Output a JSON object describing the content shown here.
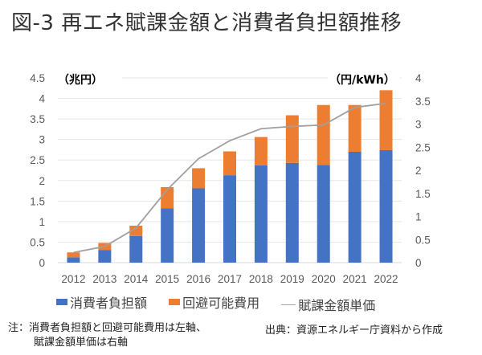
{
  "title": "図-3 再エネ賦課金額と消費者負担額推移",
  "chart_data": {
    "type": "bar",
    "stacked": true,
    "title": "図-3 再エネ賦課金額と消費者負担額推移",
    "categories": [
      "2012",
      "2013",
      "2014",
      "2015",
      "2016",
      "2017",
      "2018",
      "2019",
      "2020",
      "2021",
      "2022"
    ],
    "series": [
      {
        "name": "消費者負担額",
        "kind": "bar",
        "axis": "left",
        "color": "#4472C4",
        "values": [
          0.13,
          0.31,
          0.65,
          1.32,
          1.81,
          2.13,
          2.37,
          2.43,
          2.38,
          2.7,
          2.74
        ]
      },
      {
        "name": "回避可能費用",
        "kind": "bar",
        "axis": "left",
        "color": "#ED7D31",
        "values": [
          0.12,
          0.17,
          0.25,
          0.52,
          0.49,
          0.58,
          0.69,
          1.16,
          1.46,
          1.14,
          1.46
        ]
      },
      {
        "name": "賦課金額単価",
        "kind": "line",
        "axis": "right",
        "color": "#A5A5A5",
        "values": [
          0.22,
          0.35,
          0.75,
          1.58,
          2.25,
          2.64,
          2.9,
          2.95,
          2.98,
          3.36,
          3.45
        ]
      }
    ],
    "left_axis": {
      "label": "（兆円）",
      "ylim": [
        0,
        4.5
      ],
      "ticks": [
        "0",
        "0.5",
        "1",
        "1.5",
        "2",
        "2.5",
        "3",
        "3.5",
        "4",
        "4.5"
      ]
    },
    "right_axis": {
      "label": "（円/kWh）",
      "ylim": [
        0,
        4
      ],
      "ticks": [
        "0",
        "0.5",
        "1",
        "1.5",
        "2",
        "2.5",
        "3",
        "3.5",
        "4"
      ]
    },
    "grid": true,
    "legend_position": "bottom"
  },
  "legend": [
    {
      "label": "消費者負担額",
      "type": "box",
      "color": "#4472C4"
    },
    {
      "label": "回避可能費用",
      "type": "box",
      "color": "#ED7D31"
    },
    {
      "label": "賦課金額単価",
      "type": "line",
      "color": "#A5A5A5"
    }
  ],
  "note": {
    "line1": "注：消費者負担額と回避可能費用は左軸、",
    "line2": "賦課金額単価は右軸"
  },
  "source": "出典：資源エネルギー庁資料から作成"
}
